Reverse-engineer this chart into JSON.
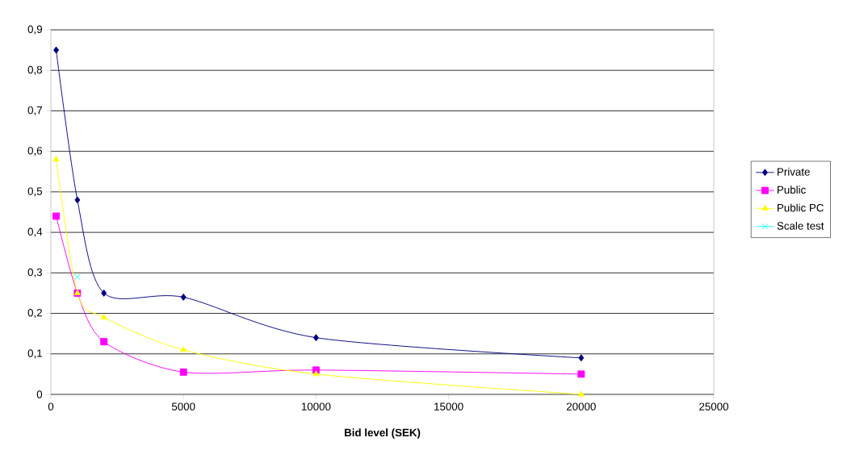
{
  "chart_data": {
    "type": "line",
    "xlabel": "Bid level (SEK)",
    "xlim": [
      0,
      25000
    ],
    "xticks": [
      0,
      5000,
      10000,
      15000,
      20000,
      25000
    ],
    "ylim": [
      0,
      0.9
    ],
    "yticks": [
      0,
      {
        "value": 0.1,
        "label": "0,1"
      },
      {
        "value": 0.2,
        "label": "0,2"
      },
      {
        "value": 0.3,
        "label": "0,3"
      },
      {
        "value": 0.4,
        "label": "0,4"
      },
      {
        "value": 0.5,
        "label": "0,5"
      },
      {
        "value": 0.6,
        "label": "0,6"
      },
      {
        "value": 0.7,
        "label": "0,7"
      },
      {
        "value": 0.8,
        "label": "0,8"
      },
      {
        "value": 0.9,
        "label": "0,9"
      }
    ],
    "grid": "y",
    "legend": "right",
    "line_style": "solid",
    "series": [
      {
        "name": "Private",
        "color": "#000080",
        "marker": "diamond",
        "x": [
          200,
          1000,
          2000,
          5000,
          10000,
          20000
        ],
        "values": [
          0.85,
          0.48,
          0.25,
          0.24,
          0.14,
          0.09
        ]
      },
      {
        "name": "Public",
        "color": "#ff00ff",
        "marker": "square",
        "x": [
          200,
          1000,
          2000,
          5000,
          10000,
          20000
        ],
        "values": [
          0.44,
          0.25,
          0.13,
          0.055,
          0.06,
          0.05
        ]
      },
      {
        "name": "Public PC",
        "color": "#ffff00",
        "marker": "triangle",
        "x": [
          200,
          1000,
          2000,
          5000,
          10000,
          20000
        ],
        "values": [
          0.58,
          0.25,
          0.19,
          0.11,
          0.05,
          0.0
        ]
      },
      {
        "name": "Scale test",
        "color": "#00ffff",
        "marker": "cross",
        "x": [
          1000
        ],
        "values": [
          0.29
        ]
      }
    ]
  }
}
